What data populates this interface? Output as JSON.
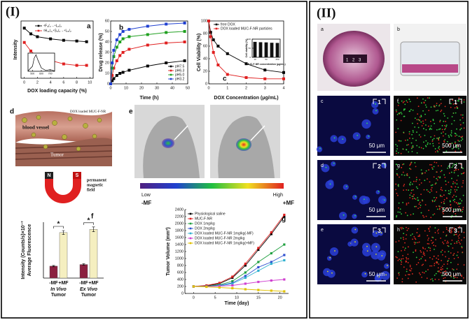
{
  "figure": {
    "panel_I": "(I)",
    "panel_II": "(II)"
  },
  "chart_data": [
    {
      "type": "line",
      "panel": "a",
      "xlabel": "DOX loading capacity (%)",
      "ylabel": "Intensity",
      "x": [
        0,
        1,
        2,
        4,
        6,
        8,
        9.5
      ],
      "xlim": [
        -0.5,
        10.5
      ],
      "xticks": [
        0,
        2,
        4,
        6,
        8,
        10
      ],
      "ylim": [
        30,
        110
      ],
      "markers": true,
      "series": [
        {
          "name": "⁴F₉/₂→⁴I₁₅/₂",
          "color": "#000000",
          "values": [
            100,
            92,
            88,
            85,
            83,
            82,
            81
          ]
        },
        {
          "name": "²H₁₁/₂,⁴S₃/₂→⁴I₁₅/₂",
          "color": "#e02020",
          "values": [
            80,
            68,
            60,
            55,
            50,
            48,
            48
          ]
        }
      ]
    },
    {
      "type": "line",
      "x": [
        450,
        500,
        520,
        540,
        560,
        600,
        650,
        700,
        750
      ],
      "xlim": [
        450,
        750
      ],
      "xticks": [
        500,
        600,
        700
      ],
      "ylim": [
        0,
        1.1
      ],
      "series": [
        {
          "color": "#000000",
          "values": [
            0.02,
            0.3,
            0.8,
            1.0,
            0.7,
            0.2,
            0.05,
            0.1,
            0.02
          ]
        }
      ]
    },
    {
      "type": "line",
      "panel": "b",
      "xlabel": "Time (h)",
      "ylabel": "Drug release (%)",
      "x": [
        0,
        1,
        2,
        4,
        6,
        8,
        12,
        24,
        36,
        48
      ],
      "xlim": [
        0,
        50
      ],
      "xticks": [
        0,
        10,
        20,
        30,
        40,
        50
      ],
      "ylim": [
        0,
        60
      ],
      "yticks": [
        0,
        10,
        20,
        30,
        40,
        50,
        60
      ],
      "markers": true,
      "series": [
        {
          "name": "pH7.5",
          "color": "#000000",
          "values": [
            0,
            3,
            5,
            8,
            10,
            11,
            13,
            17,
            20,
            22
          ]
        },
        {
          "name": "pH6.3",
          "color": "#e02020",
          "values": [
            0,
            8,
            15,
            22,
            27,
            30,
            33,
            37,
            39,
            40
          ]
        },
        {
          "name": "pH5.0",
          "color": "#20a020",
          "values": [
            0,
            15,
            26,
            35,
            40,
            43,
            45,
            47,
            49,
            50
          ]
        },
        {
          "name": "pH3.2",
          "color": "#2040d0",
          "values": [
            0,
            20,
            32,
            42,
            47,
            50,
            52,
            55,
            57,
            58
          ]
        }
      ]
    },
    {
      "type": "line",
      "panel": "c",
      "xlabel": "DOX Concentration (μg/mL)",
      "ylabel": "Cell Viability (%)",
      "x": [
        0,
        0.1,
        0.25,
        0.5,
        1,
        2,
        3,
        4
      ],
      "xlim": [
        0,
        4
      ],
      "xticks": [
        0,
        1,
        2,
        3,
        4
      ],
      "ylim": [
        0,
        100
      ],
      "yticks": [
        0,
        20,
        40,
        60,
        80,
        100
      ],
      "markers": true,
      "series": [
        {
          "name": "free DOX",
          "color": "#000000",
          "values": [
            100,
            82,
            70,
            60,
            48,
            32,
            22,
            18
          ]
        },
        {
          "name": "DOX loaded MUC-F-NR particles",
          "color": "#e02020",
          "values": [
            100,
            75,
            50,
            30,
            15,
            10,
            8,
            8
          ]
        }
      ]
    },
    {
      "type": "bar",
      "xlabel": "MUC-F-NR concentration (μg/mL)",
      "ylabel": "Cell viability (%)",
      "categories": [
        "10",
        null,
        "50",
        null,
        "250"
      ],
      "values": [
        85,
        83,
        82,
        80,
        79
      ],
      "color": "#111111",
      "ylim": [
        0,
        100
      ],
      "yticks": [
        0,
        50,
        100
      ]
    },
    {
      "type": "bar",
      "panel": "f",
      "ylabel": [
        "Average Fluorescence",
        "Intensity (Counts/s)×10⁻³"
      ],
      "categories": [
        [
          "In Vivo",
          "Tumor"
        ],
        [
          "Ex Vivo",
          "Tumor"
        ]
      ],
      "ylim": [
        0,
        7
      ],
      "series": [
        {
          "name": "-MF",
          "color": "#8b2040",
          "values": [
            1.5,
            1.7
          ],
          "errors": [
            0.08,
            0.1
          ]
        },
        {
          "name": "+MF",
          "color": "#f5efc0",
          "values": [
            5.7,
            6.1
          ],
          "errors": [
            0.25,
            0.3
          ]
        }
      ],
      "annotations": [
        "*",
        "*"
      ]
    },
    {
      "type": "line",
      "panel": "g",
      "xlabel": "Time (day)",
      "ylabel": "Tumor Volume (mm³)",
      "x": [
        0,
        3,
        6,
        9,
        12,
        15,
        18,
        21
      ],
      "xlim": [
        -2,
        22
      ],
      "xticks": [
        0,
        5,
        10,
        15,
        20
      ],
      "ylim": [
        0,
        2400
      ],
      "yticks": [
        0,
        200,
        400,
        600,
        800,
        1000,
        1200,
        1400,
        1600,
        1800,
        2000,
        2200,
        2400
      ],
      "markers": true,
      "series": [
        {
          "name": "Physiological saline",
          "color": "#000000",
          "values": [
            200,
            220,
            280,
            450,
            800,
            1250,
            1700,
            2200
          ]
        },
        {
          "name": "MUC-F-NR",
          "color": "#e02020",
          "values": [
            200,
            230,
            300,
            480,
            850,
            1300,
            1750,
            2250
          ]
        },
        {
          "name": "DOX 1mg/kg",
          "color": "#20a040",
          "values": [
            200,
            210,
            250,
            350,
            600,
            900,
            1150,
            1400
          ]
        },
        {
          "name": "DOX 2mg/kg",
          "color": "#3050d0",
          "values": [
            200,
            200,
            230,
            300,
            500,
            750,
            900,
            1100
          ]
        },
        {
          "name": "DOX loaded MUC-F-NR 1mg/kg(-MF)",
          "color": "#30b0d0",
          "values": [
            200,
            200,
            220,
            280,
            450,
            650,
            850,
            950
          ]
        },
        {
          "name": "DOX loaded MUC-F-NR 2mg/kg",
          "color": "#d040d0",
          "values": [
            200,
            200,
            210,
            230,
            280,
            330,
            370,
            400
          ]
        },
        {
          "name": "DOX loaded MUC-F-NR 1mg/kg(+MF)",
          "color": "#e0c000",
          "values": [
            200,
            190,
            170,
            150,
            120,
            100,
            80,
            60
          ]
        }
      ]
    }
  ],
  "diagram": {
    "panel": "d",
    "blood_vessel": "blood vessel",
    "particles": "DOX loaded MUC-F-NR",
    "tumor": "Tumor",
    "magnet_n": "N",
    "magnet_s": "S",
    "field": [
      "permanent",
      "magnetic",
      "field"
    ]
  },
  "imaging": {
    "panel": "e",
    "low": "Low",
    "high": "High",
    "minus": "-MF",
    "plus": "+MF"
  },
  "photos": {
    "a": {
      "label": "a",
      "marks": [
        "1",
        "2",
        "3"
      ]
    },
    "b": {
      "label": "b"
    },
    "micrographs": [
      {
        "label": "c",
        "roi": "1",
        "scale": "50 μm"
      },
      {
        "label": "f",
        "roi": "1",
        "scale": "500 μm"
      },
      {
        "label": "d",
        "roi": "2",
        "scale": "50 μm"
      },
      {
        "label": "g",
        "roi": "2",
        "scale": "500 μm"
      },
      {
        "label": "e",
        "roi": "3",
        "scale": "50 μm"
      },
      {
        "label": "h",
        "roi": "3",
        "scale": "500 μm"
      }
    ]
  }
}
